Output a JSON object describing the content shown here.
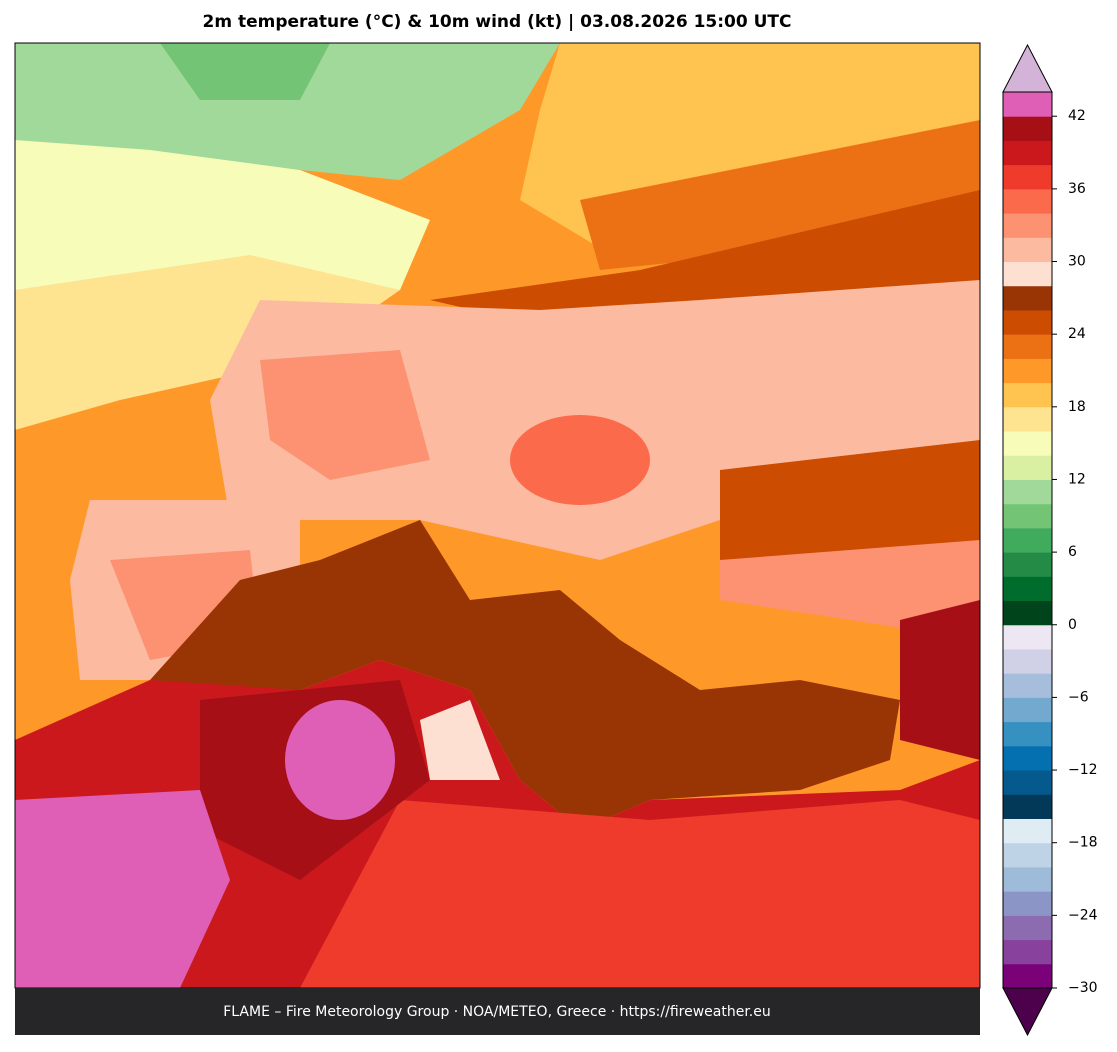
{
  "header": {
    "title": "2m temperature (°C) & 10m wind (kt)  |  03.08.2026 15:00 UTC"
  },
  "footer": {
    "text": "FLAME – Fire Meteorology Group · NOA/METEO, Greece · https://fireweather.eu"
  },
  "colorbar": {
    "ylim": [
      -30,
      44
    ],
    "yticks": [
      {
        "value": -30,
        "label": "−30"
      },
      {
        "value": -24,
        "label": "−24"
      },
      {
        "value": -18,
        "label": "−18"
      },
      {
        "value": -12,
        "label": "−12"
      },
      {
        "value": -6,
        "label": "−6"
      },
      0,
      6,
      12,
      18,
      24,
      30,
      36,
      42
    ],
    "colors": [
      "#7a0177",
      "#88419d",
      "#8c6bb1",
      "#8c96c6",
      "#9ebcda",
      "#bfd3e6",
      "#e0ecf4",
      "#023858",
      "#045a8d",
      "#0570b0",
      "#3690c0",
      "#74a9cf",
      "#a6bddb",
      "#d0d1e6",
      "#ece7f2",
      "#00441b",
      "#006d2c",
      "#238b45",
      "#41ab5d",
      "#74c476",
      "#a1d99b",
      "#d9f0a3",
      "#f7fcb9",
      "#fee391",
      "#fec44f",
      "#fe9929",
      "#ec7014",
      "#cc4c02",
      "#993404",
      "#fee0d2",
      "#fcbba1",
      "#fc9272",
      "#fb6a4a",
      "#ef3b2c",
      "#cb181d",
      "#a50f15",
      "#de5fb5"
    ],
    "under_color": "#4d004b",
    "over_color": "#d4b3d8"
  }
}
